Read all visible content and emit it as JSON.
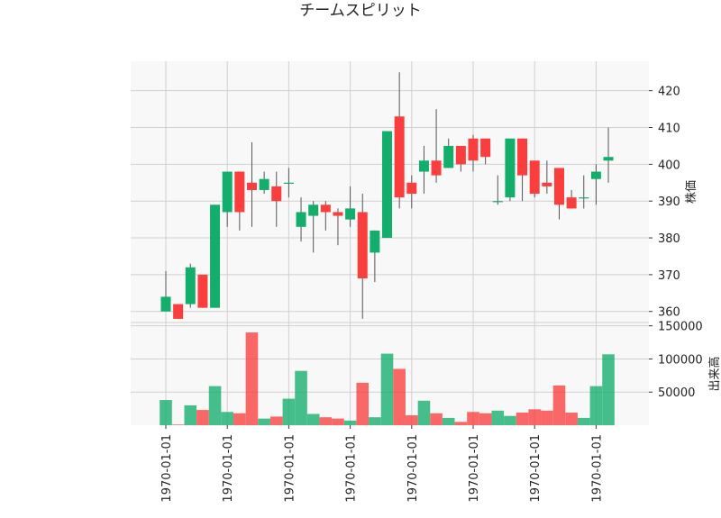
{
  "chart_data": {
    "type": "candlestick",
    "title": "チームスピリット",
    "x_tick_labels": [
      "1970-01-01",
      "1970-01-01",
      "1970-01-01",
      "1970-01-01",
      "1970-01-01",
      "1970-01-01",
      "1970-01-01",
      "1970-01-01"
    ],
    "x_tick_indices": [
      0,
      5,
      10,
      15,
      20,
      25,
      30,
      35
    ],
    "price_panel": {
      "ylabel": "株価",
      "ylim": [
        357,
        428
      ],
      "yticks": [
        360,
        370,
        380,
        390,
        400,
        410,
        420
      ]
    },
    "volume_panel": {
      "ylabel": "出来高",
      "ylim": [
        0,
        155000
      ],
      "yticks": [
        50000,
        100000,
        150000
      ],
      "ytick_labels": [
        "50000",
        "100000",
        "150000"
      ]
    },
    "colors": {
      "up": "#13ad6c",
      "down": "#fa3d3d",
      "wick": "#555555",
      "grid": "#d0d0d0",
      "panel_bg": "#f8f8f8"
    },
    "candles": [
      {
        "open": 360,
        "high": 371,
        "low": 360,
        "close": 364,
        "volume": 38000
      },
      {
        "open": 362,
        "high": 362,
        "low": 358,
        "close": 358,
        "volume": 1000
      },
      {
        "open": 362,
        "high": 373,
        "low": 361,
        "close": 372,
        "volume": 30000
      },
      {
        "open": 370,
        "high": 370,
        "low": 361,
        "close": 361,
        "volume": 23000
      },
      {
        "open": 361,
        "high": 389,
        "low": 361,
        "close": 389,
        "volume": 59000
      },
      {
        "open": 387,
        "high": 398,
        "low": 383,
        "close": 398,
        "volume": 20000
      },
      {
        "open": 398,
        "high": 398,
        "low": 382,
        "close": 387,
        "volume": 18000
      },
      {
        "open": 395,
        "high": 406,
        "low": 383,
        "close": 393,
        "volume": 140000
      },
      {
        "open": 393,
        "high": 398,
        "low": 392,
        "close": 396,
        "volume": 10000
      },
      {
        "open": 394,
        "high": 398,
        "low": 383,
        "close": 390,
        "volume": 13000
      },
      {
        "open": 395,
        "high": 399,
        "low": 391,
        "close": 395,
        "volume": 40000
      },
      {
        "open": 383,
        "high": 391,
        "low": 379,
        "close": 387,
        "volume": 82000
      },
      {
        "open": 386,
        "high": 390,
        "low": 376,
        "close": 389,
        "volume": 17000
      },
      {
        "open": 389,
        "high": 390,
        "low": 382,
        "close": 387,
        "volume": 12000
      },
      {
        "open": 387,
        "high": 388,
        "low": 378,
        "close": 386,
        "volume": 10000
      },
      {
        "open": 385,
        "high": 394,
        "low": 383,
        "close": 388,
        "volume": 7000
      },
      {
        "open": 387,
        "high": 392,
        "low": 358,
        "close": 369,
        "volume": 64000
      },
      {
        "open": 376,
        "high": 382,
        "low": 368,
        "close": 382,
        "volume": 12000
      },
      {
        "open": 380,
        "high": 409,
        "low": 380,
        "close": 409,
        "volume": 108000
      },
      {
        "open": 413,
        "high": 425,
        "low": 388,
        "close": 391,
        "volume": 85000
      },
      {
        "open": 395,
        "high": 397,
        "low": 388,
        "close": 392,
        "volume": 15000
      },
      {
        "open": 398,
        "high": 405,
        "low": 392,
        "close": 401,
        "volume": 37000
      },
      {
        "open": 401,
        "high": 415,
        "low": 395,
        "close": 397,
        "volume": 18000
      },
      {
        "open": 399,
        "high": 407,
        "low": 399,
        "close": 405,
        "volume": 11000
      },
      {
        "open": 405,
        "high": 405,
        "low": 398,
        "close": 400,
        "volume": 5000
      },
      {
        "open": 407,
        "high": 408,
        "low": 398,
        "close": 401,
        "volume": 20000
      },
      {
        "open": 407,
        "high": 407,
        "low": 400,
        "close": 402,
        "volume": 18000
      },
      {
        "open": 390,
        "high": 397,
        "low": 389,
        "close": 390,
        "volume": 22000
      },
      {
        "open": 391,
        "high": 407,
        "low": 390,
        "close": 407,
        "volume": 14000
      },
      {
        "open": 407,
        "high": 407,
        "low": 390,
        "close": 397,
        "volume": 19000
      },
      {
        "open": 401,
        "high": 401,
        "low": 391,
        "close": 392,
        "volume": 24000
      },
      {
        "open": 395,
        "high": 401,
        "low": 392,
        "close": 394,
        "volume": 22000
      },
      {
        "open": 399,
        "high": 399,
        "low": 385,
        "close": 389,
        "volume": 60000
      },
      {
        "open": 391,
        "high": 393,
        "low": 388,
        "close": 388,
        "volume": 19000
      },
      {
        "open": 391,
        "high": 397,
        "low": 388,
        "close": 391,
        "volume": 11000
      },
      {
        "open": 396,
        "high": 400,
        "low": 389,
        "close": 398,
        "volume": 59000
      },
      {
        "open": 401,
        "high": 410,
        "low": 395,
        "close": 402,
        "volume": 107000
      }
    ]
  }
}
